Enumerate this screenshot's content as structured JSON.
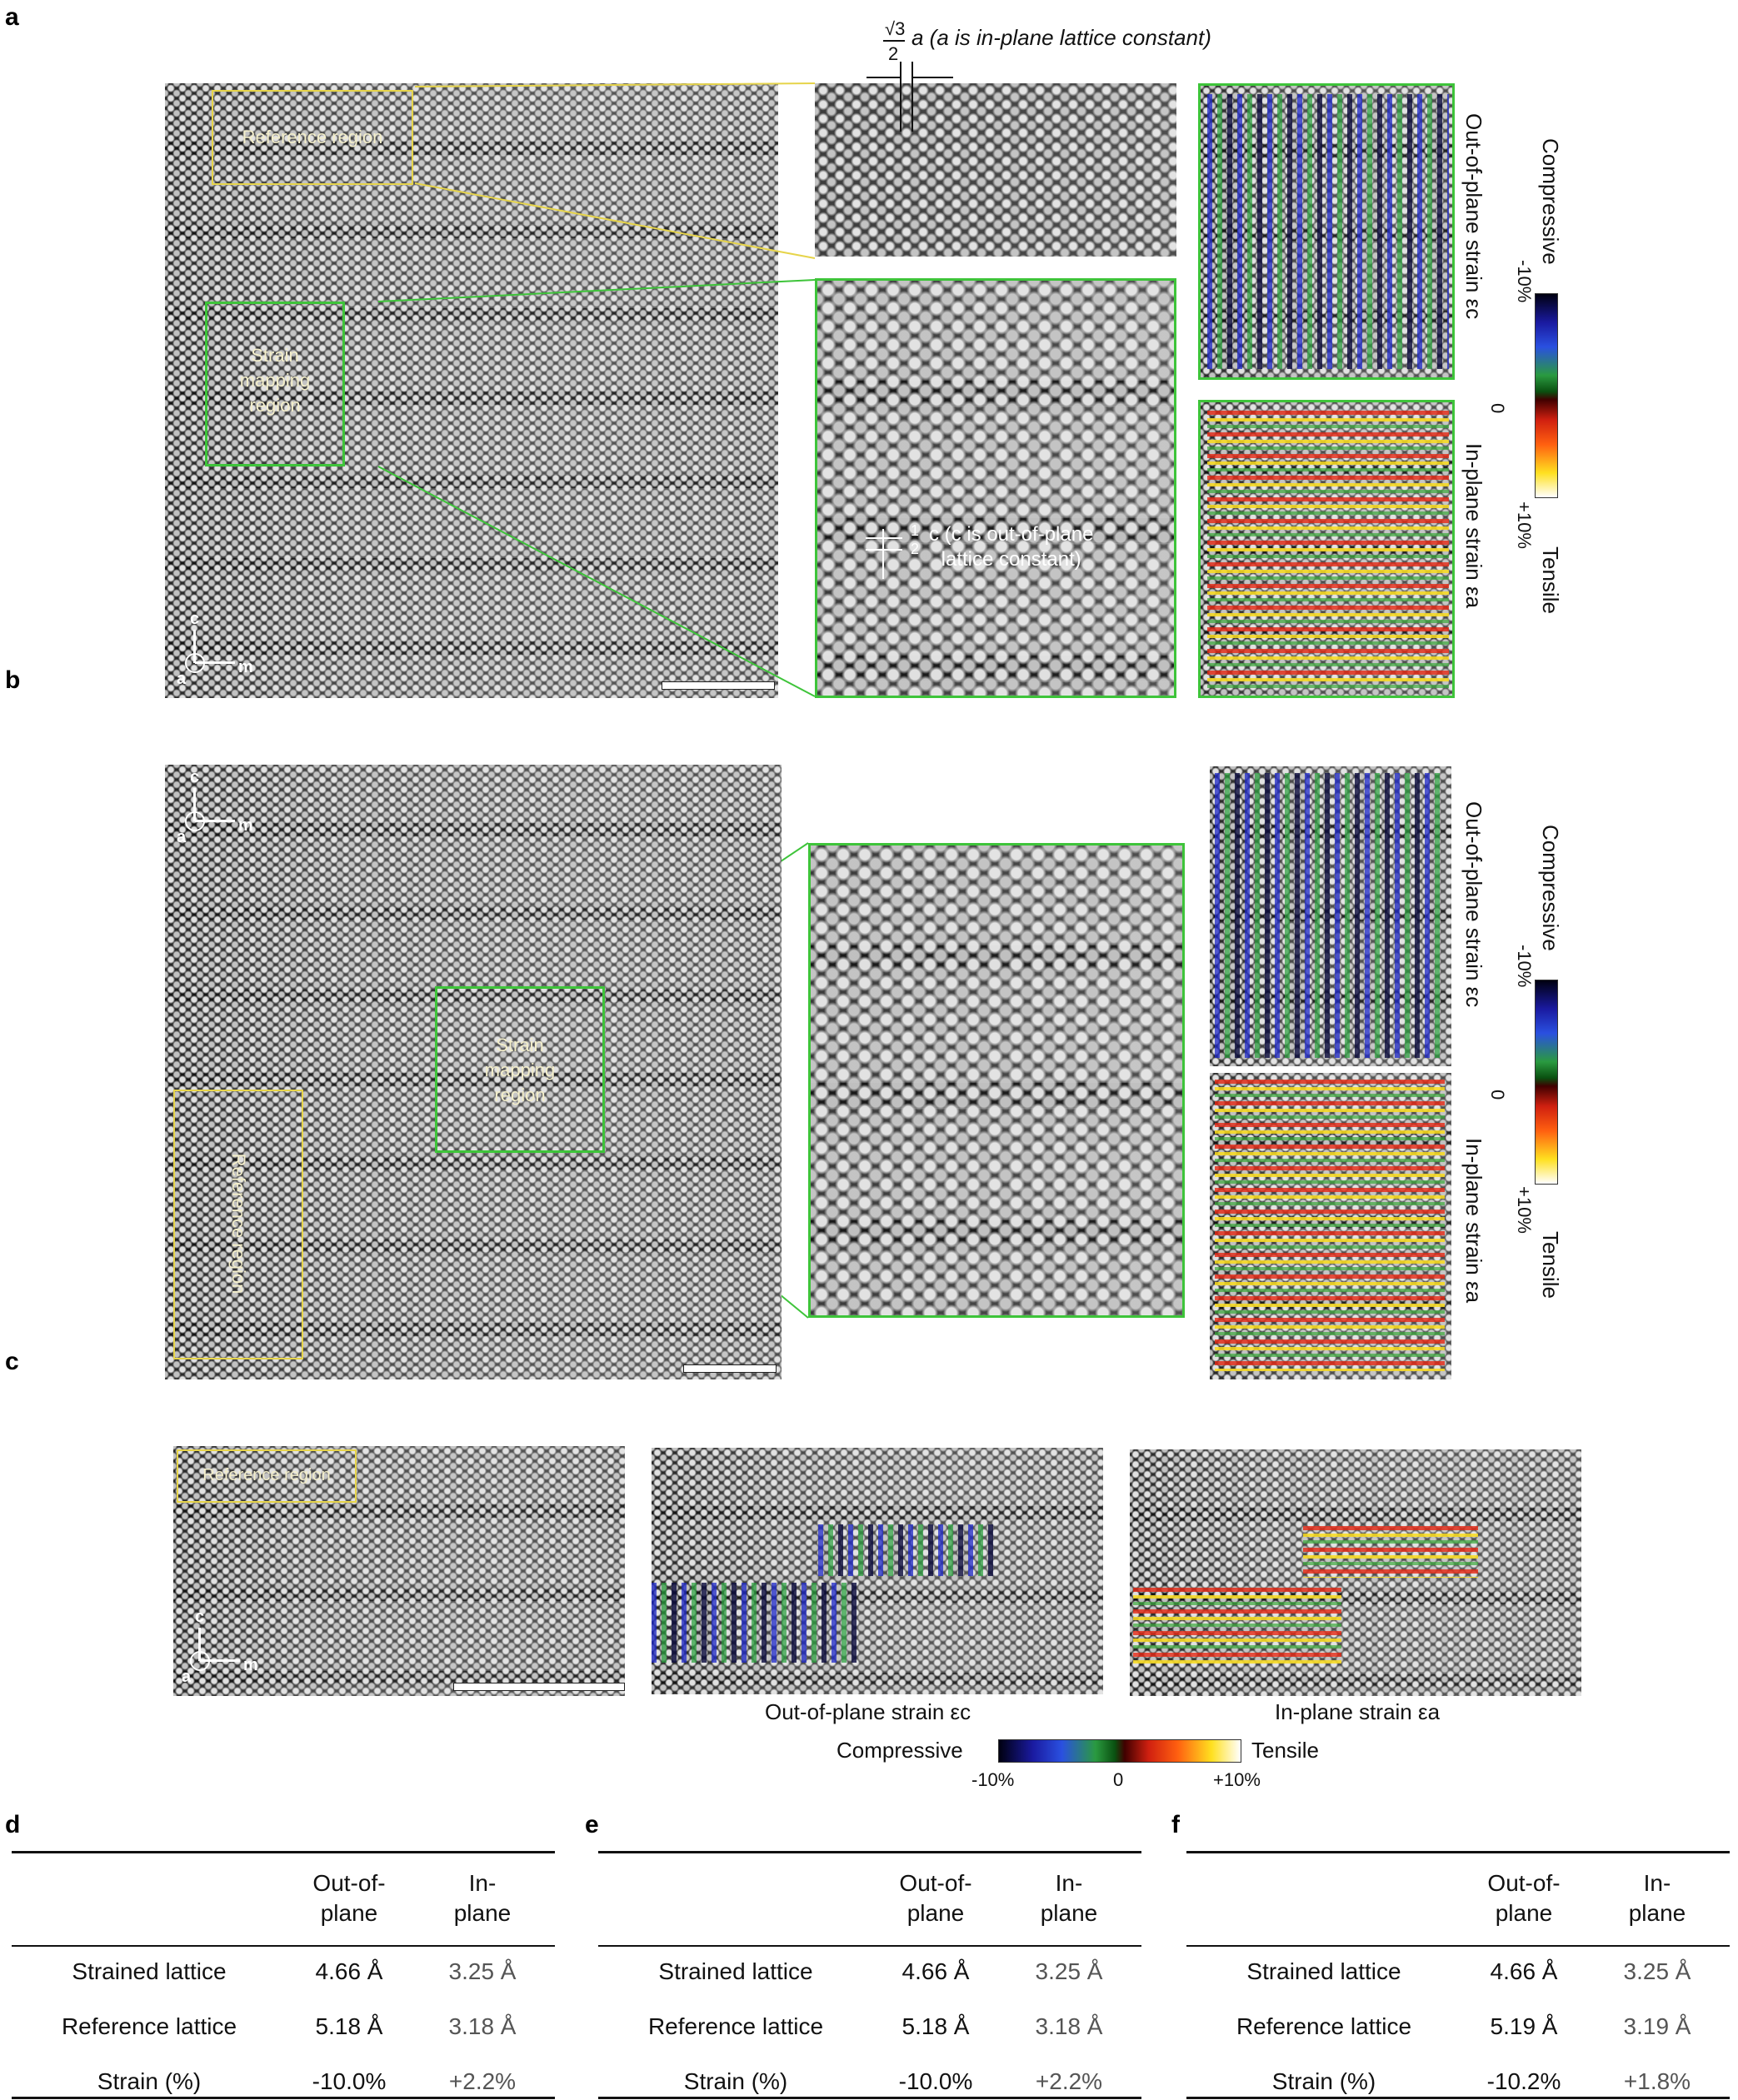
{
  "panels": {
    "a": "a",
    "b": "b",
    "c": "c",
    "d": "d",
    "e": "e",
    "f": "f"
  },
  "annotations": {
    "reference_region": "Reference region",
    "strain_mapping_region": [
      "Strain",
      "mapping",
      "region"
    ],
    "in_plane_lattice_note": "a (a is in-plane lattice constant)",
    "sqrt3_over_2": "√3",
    "two": "2",
    "half_c_note_1": "c (c is out-of-plane",
    "half_c_note_2": "lattice constant)",
    "one": "1",
    "axis_c": "c",
    "axis_m": "m",
    "axis_a": "a"
  },
  "colorbar": {
    "compressive": "Compressive",
    "tensile": "Tensile",
    "neg": "-10%",
    "zero": "0",
    "pos": "+10%"
  },
  "strain_labels": {
    "out_of_plane": "Out-of-plane strain εc",
    "in_plane": "In-plane strain εa"
  },
  "tables": [
    {
      "letter": "d",
      "col_headers": [
        [
          "Out-of-",
          "plane"
        ],
        [
          "In-",
          "plane"
        ]
      ],
      "rows": [
        {
          "label": "Strained lattice",
          "out": "4.66 Å",
          "in": "3.25 Å"
        },
        {
          "label": "Reference lattice",
          "out": "5.18 Å",
          "in": "3.18 Å"
        },
        {
          "label": "Strain (%)",
          "out": "-10.0%",
          "in": "+2.2%"
        }
      ]
    },
    {
      "letter": "e",
      "col_headers": [
        [
          "Out-of-",
          "plane"
        ],
        [
          "In-",
          "plane"
        ]
      ],
      "rows": [
        {
          "label": "Strained lattice",
          "out": "4.66 Å",
          "in": "3.25 Å"
        },
        {
          "label": "Reference lattice",
          "out": "5.18 Å",
          "in": "3.18 Å"
        },
        {
          "label": "Strain (%)",
          "out": "-10.0%",
          "in": "+2.2%"
        }
      ]
    },
    {
      "letter": "f",
      "col_headers": [
        [
          "Out-of-",
          "plane"
        ],
        [
          "In-",
          "plane"
        ]
      ],
      "rows": [
        {
          "label": "Strained lattice",
          "out": "4.66 Å",
          "in": "3.25 Å"
        },
        {
          "label": "Reference lattice",
          "out": "5.19 Å",
          "in": "3.19 Å"
        },
        {
          "label": "Strain (%)",
          "out": "-10.2%",
          "in": "+1.8%"
        }
      ]
    }
  ],
  "colors": {
    "reference_frame": "#e6d44a",
    "mapping_frame": "#3ec43a"
  }
}
